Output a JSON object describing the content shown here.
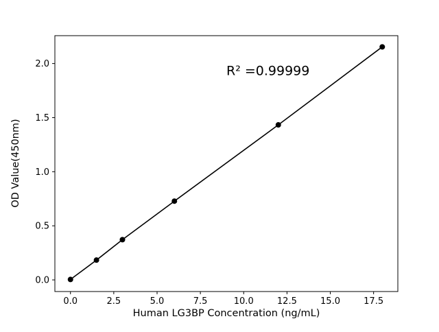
{
  "chart_data": {
    "type": "line",
    "title": "",
    "xlabel": "Human LG3BP Concentration (ng/mL)",
    "ylabel": "OD Value(450nm)",
    "series": [
      {
        "name": "standard-curve",
        "x": [
          0,
          1.5,
          3,
          6,
          12,
          18
        ],
        "y": [
          0.004,
          0.183,
          0.372,
          0.728,
          1.433,
          2.154
        ]
      }
    ],
    "xlim": [
      -0.9,
      18.9
    ],
    "ylim": [
      -0.1075,
      2.2575
    ],
    "xticks": [
      0.0,
      2.5,
      5.0,
      7.5,
      10.0,
      12.5,
      15.0,
      17.5
    ],
    "xtick_labels": [
      "0.0",
      "2.5",
      "5.0",
      "7.5",
      "10.0",
      "12.5",
      "15.0",
      "17.5"
    ],
    "yticks": [
      0.0,
      0.5,
      1.0,
      1.5,
      2.0
    ],
    "ytick_labels": [
      "0.0",
      "0.5",
      "1.0",
      "1.5",
      "2.0"
    ],
    "annotation": {
      "text": "R² =0.99999",
      "x": 9.0,
      "y": 1.93
    },
    "grid": false,
    "legend": null,
    "marker": "circle",
    "marker_radius": 4,
    "line_width": 1.6,
    "colors": {
      "line": "#000000",
      "marker": "#000000",
      "axis": "#000000",
      "text": "#000000",
      "background": "#ffffff"
    }
  }
}
